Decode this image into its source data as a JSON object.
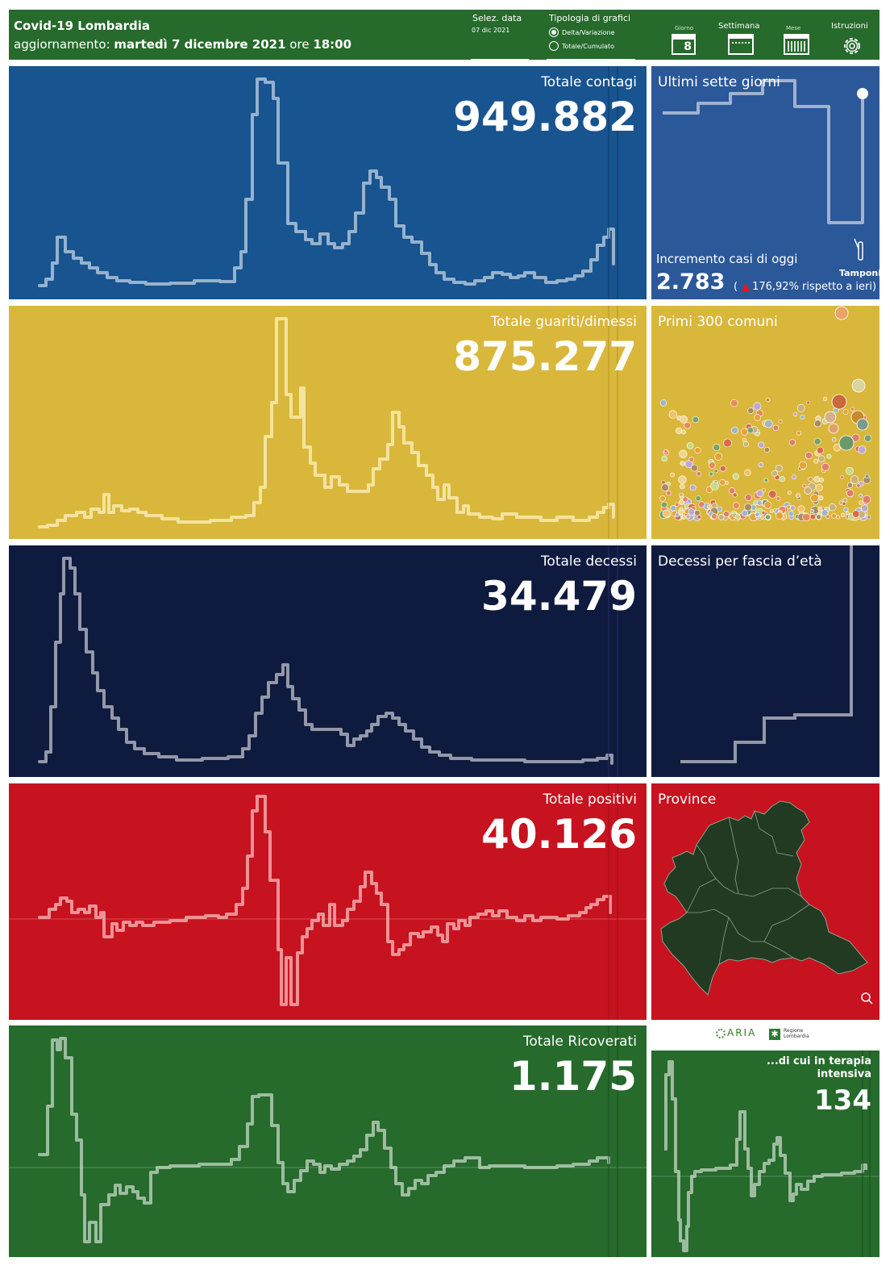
{
  "header": {
    "title": "Covid-19 Lombardia",
    "update_prefix": "aggiornamento: ",
    "update_date": "martedì 7 dicembre 2021",
    "update_mid": " ore ",
    "update_time": "18:00",
    "select_date_label": "Selez. data",
    "select_date_value": "07 dic 2021",
    "chart_type_label": "Tipologia di grafici",
    "chart_type_option_1": "Delta/Variazione",
    "chart_type_option_2": "Totale/Cumulato",
    "nav_day_label": "Giorno",
    "nav_day_number": "8",
    "nav_week_label": "Settimana",
    "nav_month_label": "Mese",
    "nav_help_label": "Istruzioni"
  },
  "colors": {
    "contagi": "#175490",
    "guariti": "#d9b73b",
    "decessi": "#0f1b3e",
    "positivi": "#c7121f",
    "ricoverati": "#266a2c",
    "header": "#266a2c"
  },
  "panels": {
    "contagi": {
      "title": "Totale contagi",
      "value": "949.882"
    },
    "guariti": {
      "title": "Totale guariti/dimessi",
      "value": "875.277"
    },
    "decessi": {
      "title": "Totale decessi",
      "value": "34.479"
    },
    "positivi": {
      "title": "Totale positivi",
      "value": "40.126"
    },
    "ricoverati": {
      "title": "Totale Ricoverati",
      "value": "1.175"
    }
  },
  "side": {
    "seven_days": {
      "title": "Ultimi sette giorni",
      "increment_label": "Incremento casi di oggi",
      "increment_value": "2.783",
      "increment_paren_open": "(",
      "increment_pct": "176,92% rispetto a  ieri)",
      "tamponi_label": "Tamponi"
    },
    "comuni": {
      "title": "Primi 300 comuni"
    },
    "fascia": {
      "title": "Decessi per fascia d’età"
    },
    "province": {
      "title": "Province"
    },
    "logo_aria": "ARIA",
    "logo_regione_1": "Regione",
    "logo_regione_2": "Lombardia",
    "intensiva": {
      "title_1": "...di cui in terapia",
      "title_2": "intensiva",
      "value": "134"
    }
  }
}
